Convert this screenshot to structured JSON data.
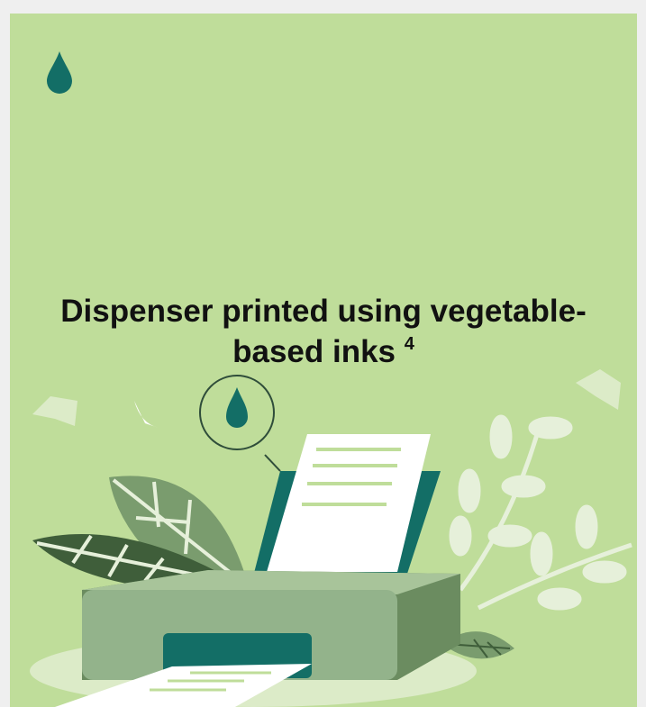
{
  "heading": {
    "text": "Dispenser printed using vegetable-based inks",
    "superscript": "4"
  }
}
